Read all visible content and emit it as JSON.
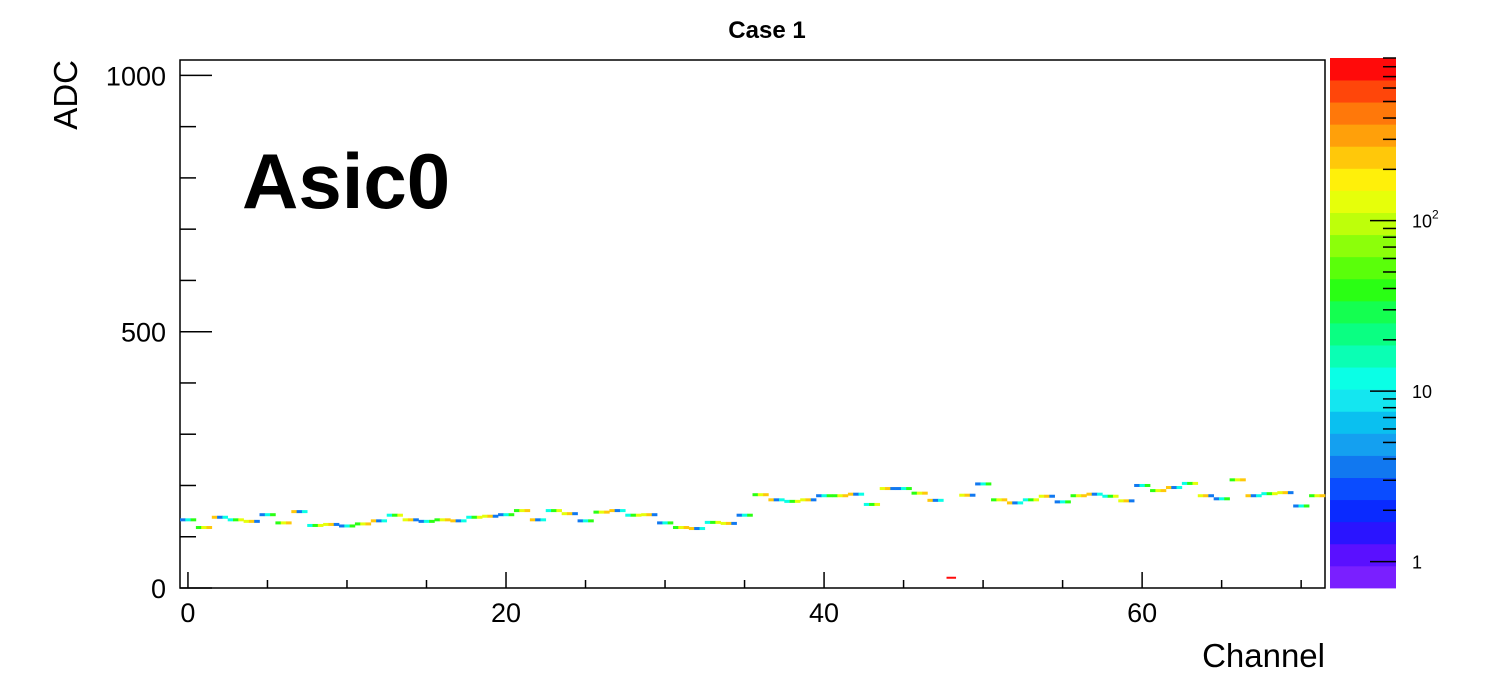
{
  "chart_data": {
    "type": "heatmap",
    "title": "Case 1",
    "xlabel": "Channel",
    "ylabel": "ADC",
    "annotation": "Asic0",
    "xlim": [
      -0.5,
      71.5
    ],
    "ylim": [
      0,
      1030
    ],
    "x_ticks": [
      0,
      20,
      40,
      60
    ],
    "y_ticks": [
      0,
      500,
      1000
    ],
    "z_scale": "log",
    "z_ticks": [
      {
        "base": "1",
        "exp": ""
      },
      {
        "base": "10",
        "exp": ""
      },
      {
        "base": "10",
        "exp": "2"
      }
    ],
    "z_range": [
      0.7,
      900
    ],
    "palette_colors": [
      "#7a1fff",
      "#5a10ff",
      "#2a14ff",
      "#0a2aff",
      "#0a4cff",
      "#1178f0",
      "#14a0f0",
      "#0ac0f0",
      "#14e6f0",
      "#0affe6",
      "#0affb4",
      "#0aff82",
      "#14ff50",
      "#2aff14",
      "#5aff0a",
      "#8cff0a",
      "#beff0a",
      "#e6ff0a",
      "#fff00a",
      "#ffc80a",
      "#ffa00a",
      "#ff780a",
      "#ff460a",
      "#ff0a0a"
    ],
    "series": [
      {
        "values": [
          133,
          118,
          138,
          133,
          130,
          143,
          127,
          149,
          122,
          124,
          121,
          125,
          131,
          142,
          133,
          130,
          133,
          131,
          138,
          140,
          143,
          151,
          133,
          151,
          145,
          131,
          148,
          151,
          142,
          143,
          127,
          118,
          116,
          128,
          126,
          142,
          182,
          172,
          169,
          172,
          180,
          180,
          183,
          163,
          194,
          194,
          185,
          171,
          20,
          181,
          203,
          172,
          166,
          172,
          179,
          168,
          180,
          183,
          179,
          170,
          200,
          190,
          196,
          204,
          180,
          174,
          211,
          180,
          184,
          186,
          160,
          180
        ]
      }
    ]
  }
}
